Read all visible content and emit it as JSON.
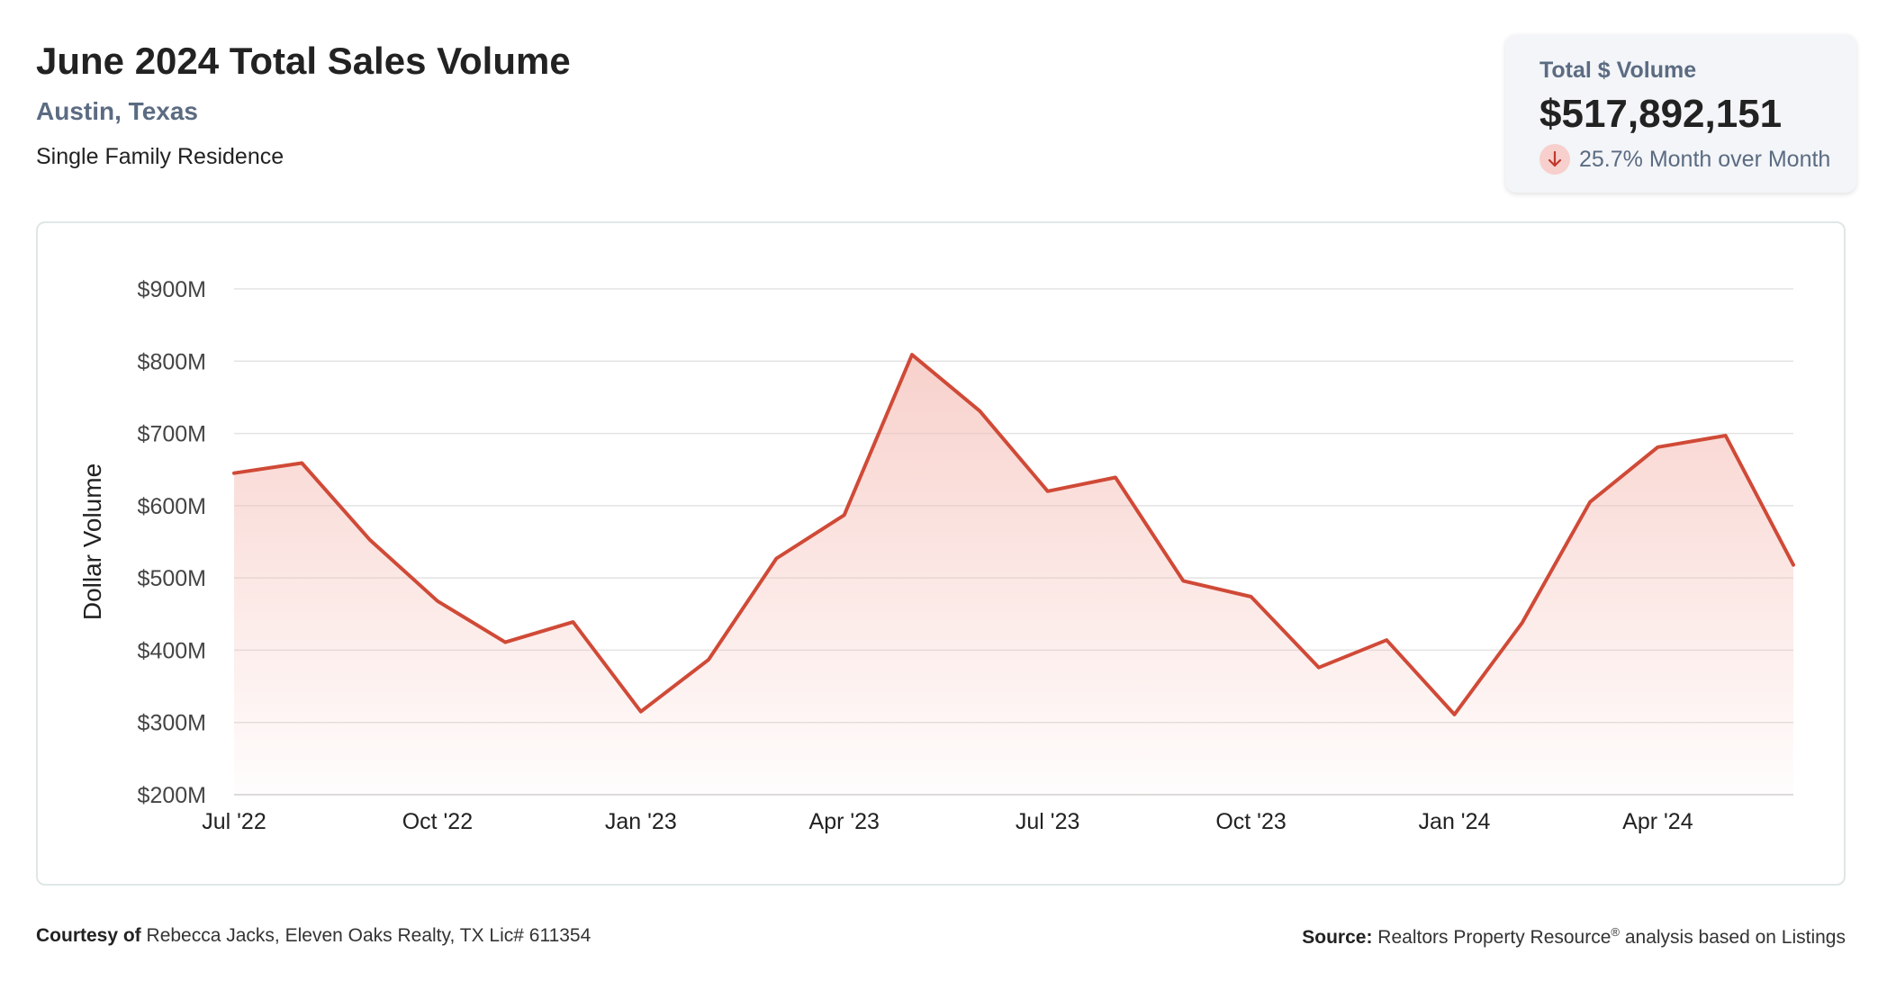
{
  "header": {
    "title": "June 2024 Total Sales Volume",
    "location": "Austin, Texas",
    "category": "Single Family Residence"
  },
  "kpi": {
    "label": "Total $ Volume",
    "value": "$517,892,151",
    "change": "25.7% Month over Month",
    "direction_icon": "arrow-down-icon",
    "icon_color": "#c0392b",
    "icon_bg": "#f7cfcc"
  },
  "chart_data": {
    "type": "area",
    "title": "June 2024 Total Sales Volume",
    "ylabel": "Dollar Volume",
    "xlabel": "",
    "ylim": [
      200,
      900
    ],
    "y_unit": "$M",
    "y_ticks": [
      "$900M",
      "$800M",
      "$700M",
      "$600M",
      "$500M",
      "$400M",
      "$300M",
      "$200M"
    ],
    "y_tick_values": [
      900,
      800,
      700,
      600,
      500,
      400,
      300,
      200
    ],
    "x": [
      "Jul '22",
      "Aug '22",
      "Sep '22",
      "Oct '22",
      "Nov '22",
      "Dec '22",
      "Jan '23",
      "Feb '23",
      "Mar '23",
      "Apr '23",
      "May '23",
      "Jun '23",
      "Jul '23",
      "Aug '23",
      "Sep '23",
      "Oct '23",
      "Nov '23",
      "Dec '23",
      "Jan '24",
      "Feb '24",
      "Mar '24",
      "Apr '24",
      "May '24",
      "Jun '24"
    ],
    "x_tick_labels": [
      {
        "index": 0,
        "label": "Jul '22"
      },
      {
        "index": 3,
        "label": "Oct '22"
      },
      {
        "index": 6,
        "label": "Jan '23"
      },
      {
        "index": 9,
        "label": "Apr '23"
      },
      {
        "index": 12,
        "label": "Jul '23"
      },
      {
        "index": 15,
        "label": "Oct '23"
      },
      {
        "index": 18,
        "label": "Jan '24"
      },
      {
        "index": 21,
        "label": "Apr '24"
      }
    ],
    "series": [
      {
        "values": [
          645,
          659,
          553,
          468,
          411,
          439,
          315,
          387,
          527,
          587,
          809,
          731,
          620,
          639,
          496,
          474,
          376,
          414,
          311,
          438,
          605,
          681,
          697,
          518
        ]
      }
    ],
    "grid": true,
    "legend": "none",
    "colors": {
      "line": "#d04a37",
      "fill": "#f4b8b0",
      "grid": "#e3e3e3"
    }
  },
  "footer": {
    "courtesy_label": "Courtesy of",
    "courtesy_text": "Rebecca Jacks, Eleven Oaks Realty, TX Lic# 611354",
    "source_label": "Source:",
    "source_text_1": "Realtors Property Resource",
    "source_reg": "®",
    "source_text_2": " analysis based on Listings"
  }
}
